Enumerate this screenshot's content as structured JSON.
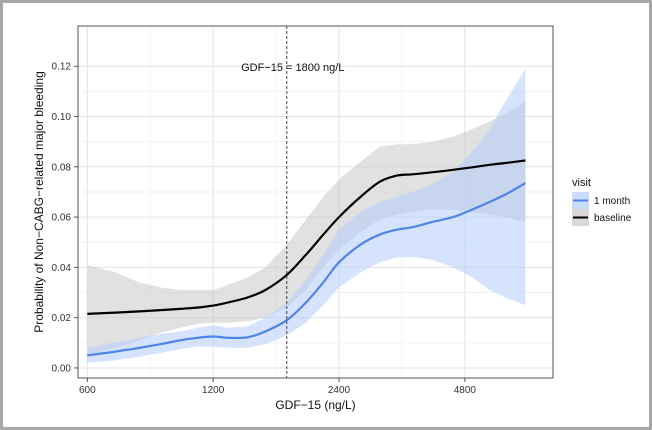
{
  "chart_data": {
    "type": "line",
    "xlabel": "GDF−15 (ng/L)",
    "ylabel": "Probability of Non−CABG−related major bleeding",
    "x_scale": "log2",
    "xlim": [
      570,
      7800
    ],
    "ylim": [
      -0.004,
      0.136
    ],
    "x_ticks": [
      600,
      1200,
      2400,
      4800
    ],
    "x_tick_labels": [
      "600",
      "1200",
      "2400",
      "4800"
    ],
    "y_ticks": [
      0.0,
      0.02,
      0.04,
      0.06,
      0.08,
      0.1,
      0.12
    ],
    "y_tick_labels": [
      "0.00",
      "0.02",
      "0.04",
      "0.06",
      "0.08",
      "0.10",
      "0.12"
    ],
    "grid": true,
    "annotation": {
      "text": "GDF−15 = 1800 ng/L",
      "x": 1800
    },
    "legend": {
      "title": "visit",
      "position": "right"
    },
    "series": [
      {
        "name": "1 month",
        "color": "#4f84e8",
        "band_color": "#b3cdfa",
        "x": [
          600,
          700,
          800,
          900,
          1000,
          1100,
          1200,
          1300,
          1450,
          1600,
          1800,
          2000,
          2200,
          2400,
          2700,
          3000,
          3300,
          3600,
          4000,
          4500,
          5000,
          5500,
          6000,
          6700
        ],
        "y": [
          0.005,
          0.0065,
          0.008,
          0.0095,
          0.011,
          0.012,
          0.0125,
          0.012,
          0.0122,
          0.0145,
          0.019,
          0.026,
          0.034,
          0.042,
          0.049,
          0.053,
          0.055,
          0.056,
          0.058,
          0.06,
          0.063,
          0.066,
          0.069,
          0.0735
        ],
        "lower": [
          0.002,
          0.003,
          0.0045,
          0.006,
          0.0075,
          0.0085,
          0.0085,
          0.008,
          0.008,
          0.0095,
          0.013,
          0.018,
          0.025,
          0.032,
          0.038,
          0.042,
          0.044,
          0.044,
          0.043,
          0.04,
          0.036,
          0.031,
          0.028,
          0.025
        ],
        "upper": [
          0.008,
          0.01,
          0.012,
          0.0135,
          0.0145,
          0.016,
          0.017,
          0.016,
          0.0165,
          0.02,
          0.026,
          0.035,
          0.045,
          0.055,
          0.062,
          0.066,
          0.068,
          0.07,
          0.073,
          0.078,
          0.086,
          0.095,
          0.106,
          0.119
        ]
      },
      {
        "name": "baseline",
        "color": "#000000",
        "band_color": "#c8c8c8",
        "x": [
          600,
          700,
          800,
          900,
          1000,
          1100,
          1200,
          1300,
          1450,
          1600,
          1800,
          2000,
          2200,
          2400,
          2700,
          3000,
          3300,
          3600,
          4000,
          4500,
          5000,
          5500,
          6000,
          6700
        ],
        "y": [
          0.0215,
          0.022,
          0.0225,
          0.023,
          0.0235,
          0.024,
          0.0248,
          0.026,
          0.028,
          0.031,
          0.037,
          0.045,
          0.053,
          0.06,
          0.068,
          0.074,
          0.0765,
          0.077,
          0.0778,
          0.0788,
          0.0798,
          0.0808,
          0.0815,
          0.0825
        ],
        "lower": [
          0.005,
          0.008,
          0.011,
          0.014,
          0.016,
          0.0175,
          0.018,
          0.018,
          0.0185,
          0.02,
          0.024,
          0.031,
          0.04,
          0.047,
          0.054,
          0.059,
          0.061,
          0.062,
          0.063,
          0.063,
          0.062,
          0.061,
          0.06,
          0.058
        ],
        "upper": [
          0.041,
          0.038,
          0.034,
          0.032,
          0.031,
          0.031,
          0.031,
          0.033,
          0.036,
          0.04,
          0.049,
          0.059,
          0.068,
          0.075,
          0.082,
          0.088,
          0.089,
          0.089,
          0.09,
          0.092,
          0.095,
          0.098,
          0.101,
          0.106
        ]
      }
    ]
  }
}
